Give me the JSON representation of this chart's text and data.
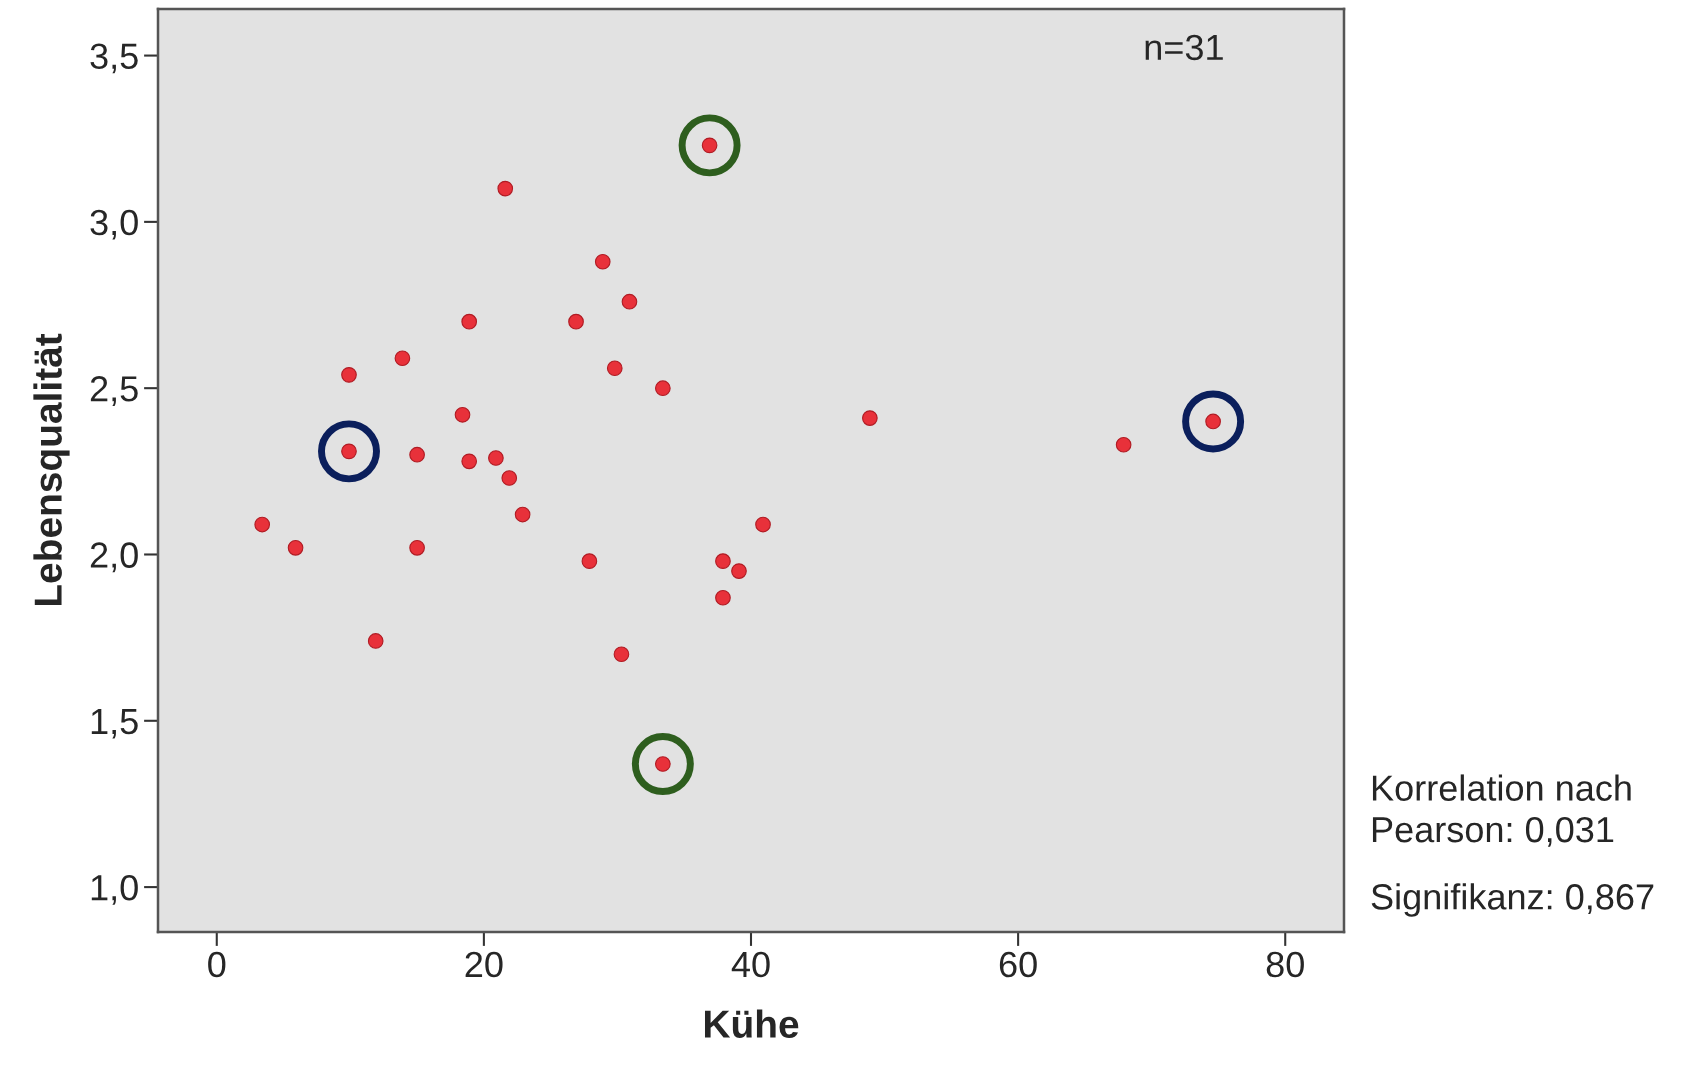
{
  "chart_data": {
    "type": "scatter",
    "xlabel": "Kühe",
    "ylabel": "Lebensqualität",
    "x": [
      3.4,
      5.9,
      9.9,
      9.9,
      11.9,
      13.9,
      15.0,
      15.0,
      18.4,
      18.9,
      18.9,
      20.9,
      21.6,
      21.9,
      22.9,
      26.9,
      27.9,
      28.9,
      29.8,
      30.3,
      30.9,
      33.4,
      33.4,
      36.9,
      37.9,
      37.9,
      39.1,
      40.9,
      48.9,
      67.9,
      74.6
    ],
    "series": [
      {
        "color": "#e8313a",
        "values": [
          2.09,
          2.02,
          2.31,
          2.54,
          1.74,
          2.59,
          2.3,
          2.02,
          2.42,
          2.7,
          2.28,
          2.29,
          3.1,
          2.23,
          2.12,
          2.7,
          1.98,
          2.88,
          2.56,
          1.7,
          2.76,
          2.5,
          1.37,
          3.23,
          1.98,
          1.87,
          1.95,
          2.09,
          2.41,
          2.33,
          2.4
        ]
      }
    ],
    "marker": "circle",
    "xlim": [
      -4.4,
      84.4
    ],
    "ylim": [
      0.865,
      3.64
    ],
    "xticks": [
      0,
      20,
      40,
      60,
      80
    ],
    "yticks": [
      {
        "value": 1.0,
        "label": "1,0"
      },
      {
        "value": 1.5,
        "label": "1,5"
      },
      {
        "value": 2.0,
        "label": "2,0"
      },
      {
        "value": 2.5,
        "label": "2,5"
      },
      {
        "value": 3.0,
        "label": "3,0"
      },
      {
        "value": 3.5,
        "label": "3,5"
      }
    ],
    "grid": false,
    "legend": false,
    "annotations": [
      "n=31",
      "Korrelation nach\nPearson: 0,031",
      "Signifikanz: 0,867"
    ]
  }
}
